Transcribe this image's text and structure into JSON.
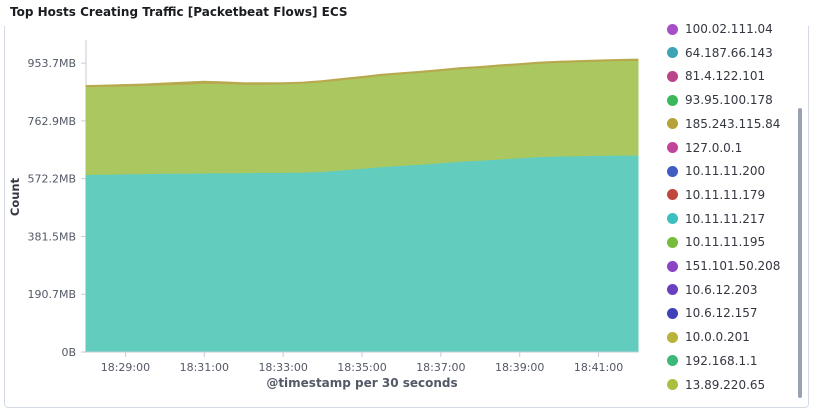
{
  "panel": {
    "title": "Top Hosts Creating Traffic [Packetbeat Flows] ECS"
  },
  "legend": {
    "items": [
      {
        "label": "100.02.111.04",
        "color": "#a64fc8"
      },
      {
        "label": "64.187.66.143",
        "color": "#3ea4b5"
      },
      {
        "label": "81.4.122.101",
        "color": "#b9468c"
      },
      {
        "label": "93.95.100.178",
        "color": "#3cb85c"
      },
      {
        "label": "185.243.115.84",
        "color": "#b5a23a"
      },
      {
        "label": "127.0.0.1",
        "color": "#c2439a"
      },
      {
        "label": "10.11.11.200",
        "color": "#3f5cc0"
      },
      {
        "label": "10.11.11.179",
        "color": "#c0463e"
      },
      {
        "label": "10.11.11.217",
        "color": "#3cbfbf"
      },
      {
        "label": "10.11.11.195",
        "color": "#78bc3c"
      },
      {
        "label": "151.101.50.208",
        "color": "#8a44c4"
      },
      {
        "label": "10.6.12.203",
        "color": "#6a40c0"
      },
      {
        "label": "10.6.12.157",
        "color": "#4040b8"
      },
      {
        "label": "10.0.0.201",
        "color": "#b8b43a"
      },
      {
        "label": "192.168.1.1",
        "color": "#3cb878"
      },
      {
        "label": "13.89.220.65",
        "color": "#a8c040"
      }
    ]
  },
  "chart_data": {
    "type": "area",
    "stacked": true,
    "title": "Top Hosts Creating Traffic [Packetbeat Flows] ECS",
    "xlabel": "@timestamp per 30 seconds",
    "ylabel": "Count",
    "x_tick_labels": [
      "18:29:00",
      "18:31:00",
      "18:33:00",
      "18:35:00",
      "18:37:00",
      "18:39:00",
      "18:41:00"
    ],
    "y_tick_labels": [
      "0B",
      "190.7MB",
      "381.5MB",
      "572.2MB",
      "762.9MB",
      "953.7MB"
    ],
    "y_ticks_mb": [
      0,
      190.7,
      381.5,
      572.2,
      762.9,
      953.7
    ],
    "ylim_mb": [
      0,
      1030
    ],
    "x_range": [
      "18:28:00",
      "18:42:00"
    ],
    "grid": false,
    "legend_position": "right",
    "x": [
      "18:28:00",
      "18:28:30",
      "18:29:00",
      "18:29:30",
      "18:30:00",
      "18:30:30",
      "18:31:00",
      "18:31:30",
      "18:32:00",
      "18:32:30",
      "18:33:00",
      "18:33:30",
      "18:34:00",
      "18:34:30",
      "18:35:00",
      "18:35:30",
      "18:36:00",
      "18:36:30",
      "18:37:00",
      "18:37:30",
      "18:38:00",
      "18:38:30",
      "18:39:00",
      "18:39:30",
      "18:40:00",
      "18:40:30",
      "18:41:00",
      "18:41:30",
      "18:42:00"
    ],
    "series": [
      {
        "name": "10.11.11.217",
        "color": "#62cdbf",
        "values": [
          586,
          587,
          588,
          589,
          590,
          590,
          591,
          592,
          592,
          593,
          593,
          594,
          596,
          601,
          606,
          612,
          616,
          620,
          625,
          630,
          633,
          637,
          641,
          645,
          647,
          648,
          649,
          650,
          650
        ]
      },
      {
        "name": "13.89.220.65",
        "color": "#aac85f",
        "values": [
          290,
          290,
          290,
          291,
          292,
          294,
          296,
          294,
          292,
          291,
          292,
          293,
          296,
          298,
          300,
          301,
          302,
          303,
          304,
          305,
          306,
          307,
          307,
          308,
          309,
          310,
          311,
          312,
          313
        ]
      },
      {
        "name": "185.243.115.84",
        "color": "#b8a84e",
        "values": [
          3,
          3,
          4,
          4,
          5,
          6,
          6,
          5,
          4,
          4,
          3,
          3,
          3,
          3,
          3,
          3,
          3,
          3,
          3,
          3,
          3,
          3,
          3,
          3,
          3,
          3,
          3,
          3,
          3
        ]
      }
    ]
  }
}
